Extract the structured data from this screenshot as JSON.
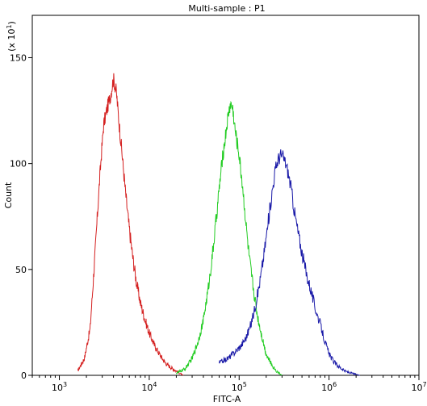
{
  "chart_data": {
    "type": "line",
    "title": "Multi-sample : P1",
    "xlabel": "FITC-A",
    "ylabel": "Count",
    "y_multiplier_label": "(x 10^1)",
    "x_scale": "log",
    "xlim": [
      500,
      10000000
    ],
    "ylim": [
      0,
      170
    ],
    "x_ticks": [
      {
        "value": 1000,
        "base": "10",
        "exp": "3"
      },
      {
        "value": 10000,
        "base": "10",
        "exp": "4"
      },
      {
        "value": 100000,
        "base": "10",
        "exp": "5"
      },
      {
        "value": 1000000,
        "base": "10",
        "exp": "6"
      },
      {
        "value": 10000000,
        "base": "10",
        "exp": "7"
      }
    ],
    "y_ticks": [
      0,
      50,
      100,
      150
    ],
    "grid": false,
    "legend": "none",
    "series": [
      {
        "color": "#d42020",
        "x": [
          1600,
          1900,
          2200,
          2500,
          2800,
          3100,
          3400,
          3700,
          4000,
          4300,
          4600,
          5000,
          5400,
          5900,
          6500,
          7200,
          8000,
          9000,
          10000,
          11500,
          13000,
          15000,
          17000,
          20000,
          24000
        ],
        "y": [
          2,
          8,
          22,
          58,
          92,
          118,
          126,
          132,
          140,
          134,
          120,
          104,
          88,
          72,
          57,
          44,
          34,
          26,
          20,
          14,
          10,
          6,
          4,
          2,
          0
        ]
      },
      {
        "color": "#22cc22",
        "x": [
          20000,
          25000,
          30000,
          35000,
          40000,
          45000,
          50000,
          55000,
          60000,
          65000,
          70000,
          75000,
          80000,
          85000,
          90000,
          100000,
          110000,
          120000,
          130000,
          145000,
          160000,
          180000,
          200000,
          230000,
          260000,
          300000
        ],
        "y": [
          1,
          3,
          8,
          16,
          26,
          40,
          55,
          72,
          88,
          102,
          112,
          122,
          128,
          126,
          116,
          104,
          88,
          70,
          55,
          40,
          28,
          18,
          10,
          5,
          2,
          0
        ]
      },
      {
        "color": "#1a1aa8",
        "x": [
          60000,
          75000,
          90000,
          105000,
          120000,
          135000,
          150000,
          170000,
          190000,
          210000,
          230000,
          250000,
          270000,
          290000,
          310000,
          330000,
          350000,
          380000,
          410000,
          450000,
          500000,
          560000,
          630000,
          700000,
          800000,
          900000,
          1000000,
          1150000,
          1300000,
          1500000,
          1800000,
          2200000
        ],
        "y": [
          6,
          8,
          11,
          14,
          18,
          24,
          32,
          44,
          58,
          72,
          85,
          96,
          102,
          104,
          103,
          100,
          96,
          88,
          78,
          68,
          58,
          48,
          40,
          32,
          24,
          16,
          10,
          6,
          4,
          2,
          1,
          0
        ]
      }
    ]
  }
}
